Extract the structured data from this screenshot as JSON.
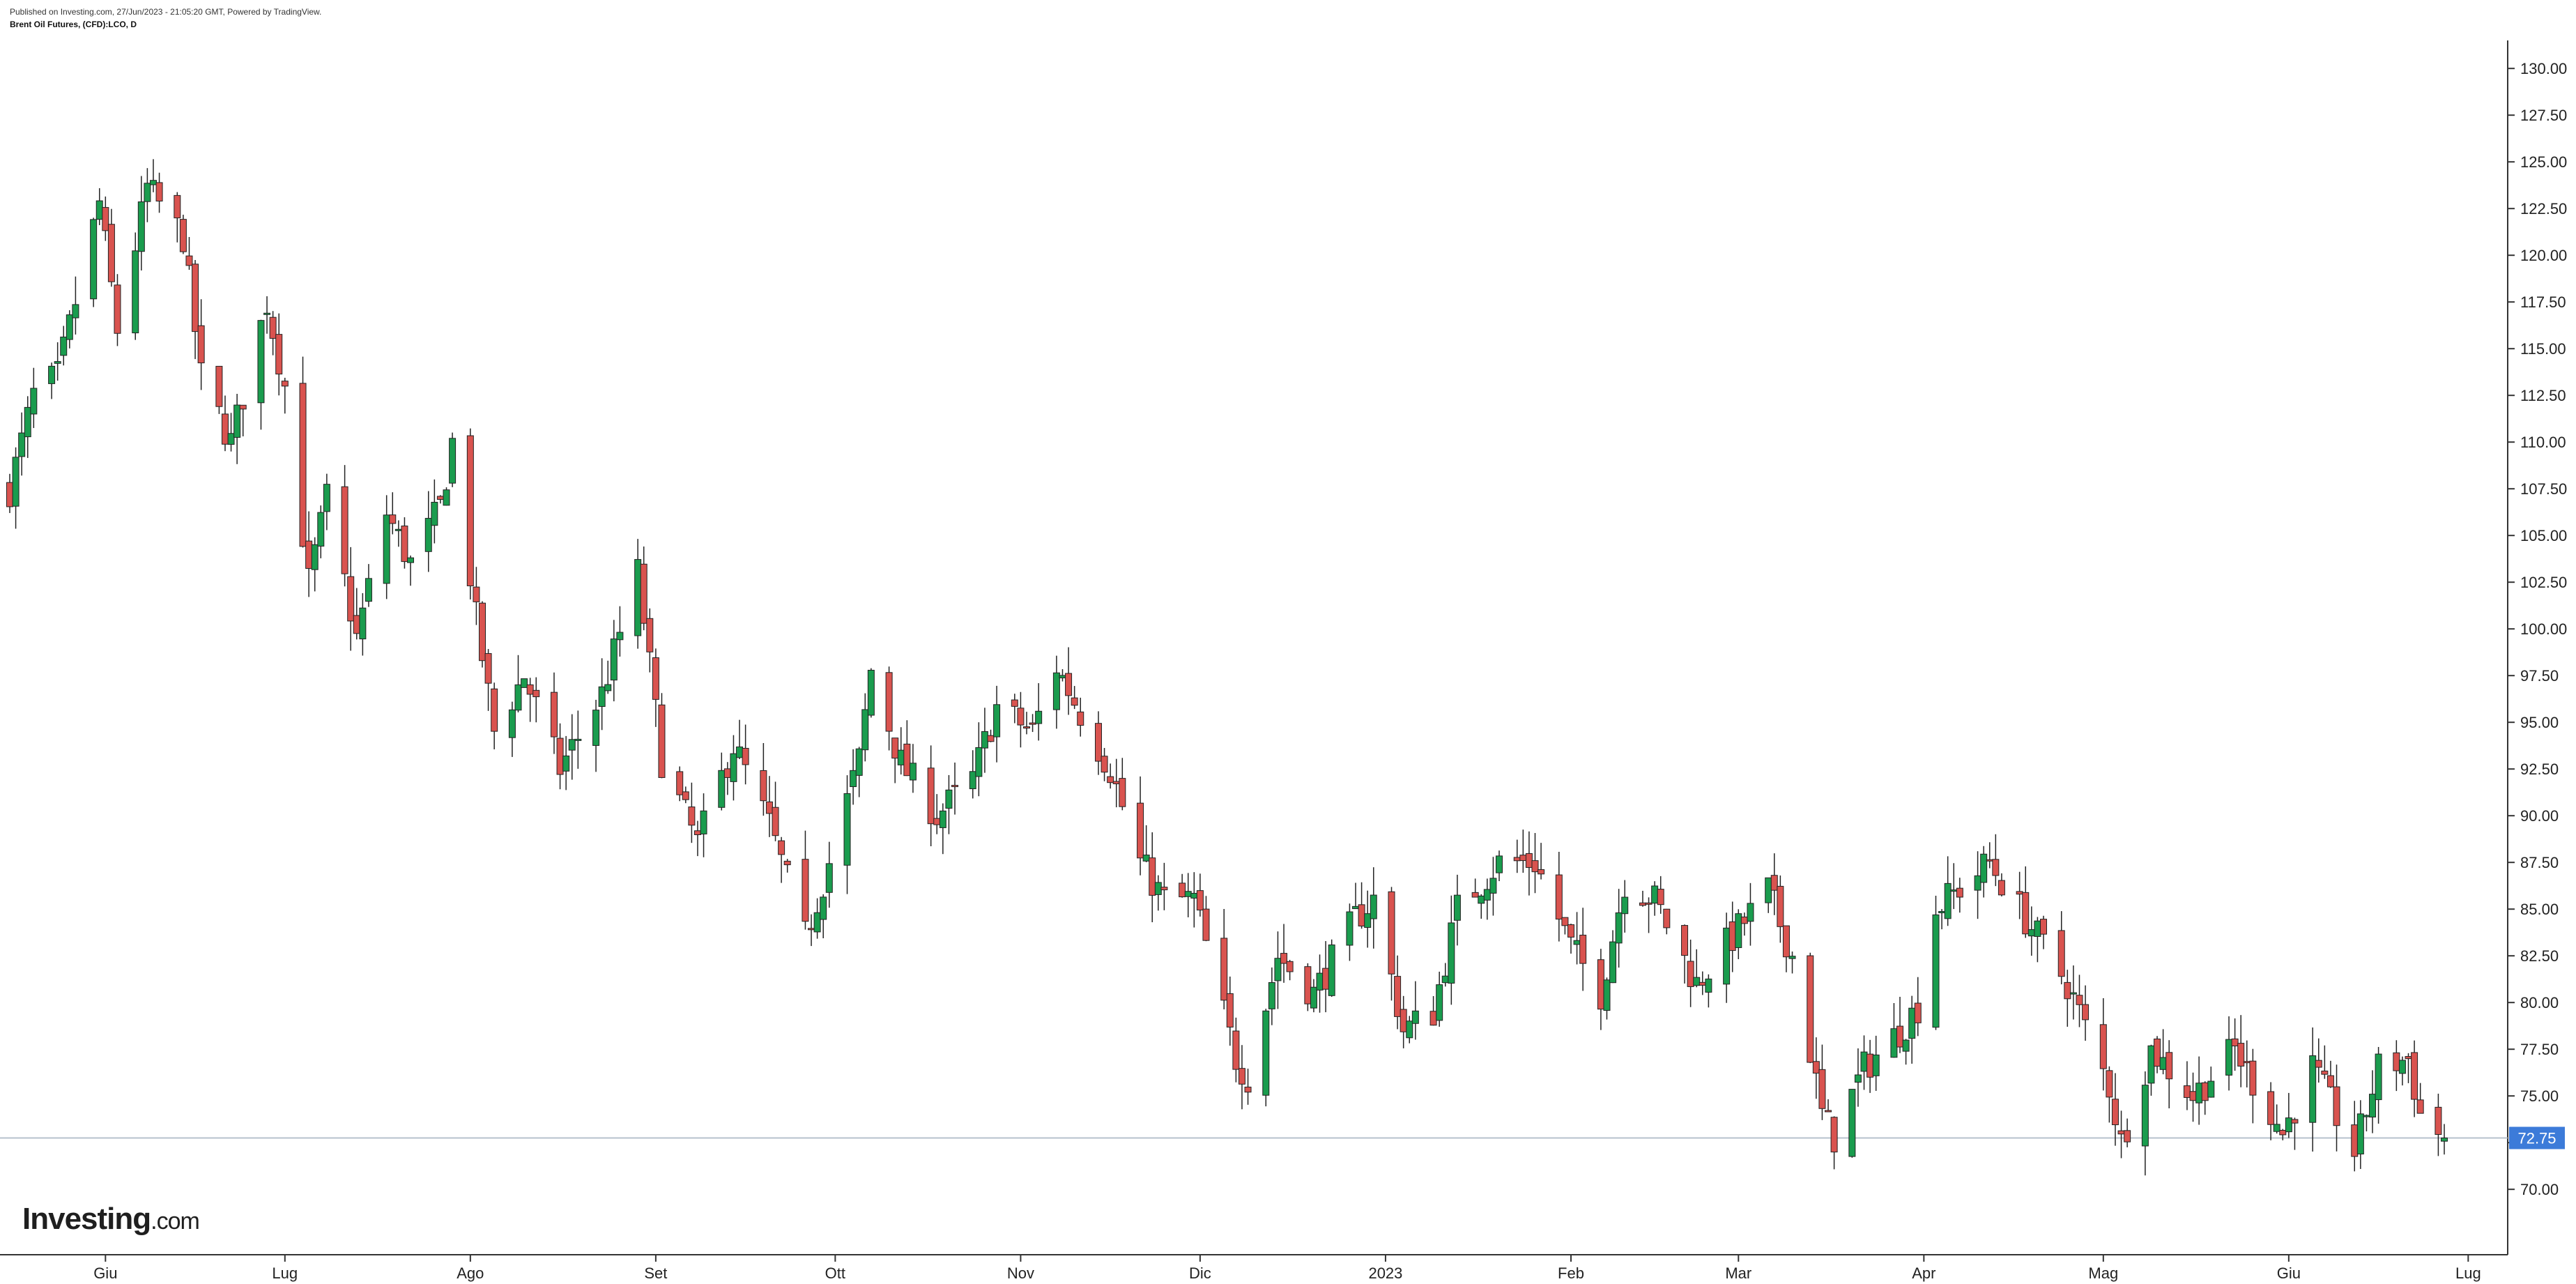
{
  "header": {
    "published": "Published on Investing.com, 27/Jun/2023 - 21:05:20 GMT, Powered by TradingView.",
    "title": "Brent Oil Futures, (CFD):LCO, D"
  },
  "logo": {
    "bold": "Investing",
    "light": ".com"
  },
  "colors": {
    "up": "#1a9c4e",
    "down": "#d9534f",
    "current": "#3c7bd9",
    "grid": "#b7c2cc"
  },
  "chart_data": {
    "type": "candlestick",
    "title": "Brent Oil Futures, (CFD):LCO, D",
    "ylim": [
      66.5,
      131.5
    ],
    "yticks": [
      70,
      72.5,
      75,
      77.5,
      80,
      82.5,
      85,
      87.5,
      90,
      92.5,
      95,
      97.5,
      100,
      102.5,
      105,
      107.5,
      110,
      112.5,
      115,
      117.5,
      120,
      122.5,
      125,
      127.5,
      130
    ],
    "ytick_labels": [
      "70.00",
      "72.50",
      "75.00",
      "77.50",
      "80.00",
      "82.50",
      "85.00",
      "87.50",
      "90.00",
      "92.50",
      "95.00",
      "97.50",
      "100.00",
      "102.50",
      "105.00",
      "107.50",
      "110.00",
      "112.50",
      "115.00",
      "117.50",
      "120.00",
      "122.50",
      "125.00",
      "127.50",
      "130.00"
    ],
    "current_price": 72.75,
    "current_label": "72.75",
    "x_labels": [
      {
        "label": "Giu",
        "date": "2022-06-01"
      },
      {
        "label": "Lug",
        "date": "2022-07-01"
      },
      {
        "label": "Ago",
        "date": "2022-08-01"
      },
      {
        "label": "Set",
        "date": "2022-09-01"
      },
      {
        "label": "Ott",
        "date": "2022-10-01"
      },
      {
        "label": "Nov",
        "date": "2022-11-01"
      },
      {
        "label": "Dic",
        "date": "2022-12-01"
      },
      {
        "label": "2023",
        "date": "2023-01-01"
      },
      {
        "label": "Feb",
        "date": "2023-02-01"
      },
      {
        "label": "Mar",
        "date": "2023-03-01"
      },
      {
        "label": "Apr",
        "date": "2023-04-01"
      },
      {
        "label": "Mag",
        "date": "2023-05-01"
      },
      {
        "label": "Giu",
        "date": "2023-06-01"
      },
      {
        "label": "Lug",
        "date": "2023-07-01"
      }
    ],
    "close_series": [
      {
        "date": "2022-05-16",
        "close": 107.5
      },
      {
        "date": "2022-05-20",
        "close": 112.5
      },
      {
        "date": "2022-05-24",
        "close": 113.5
      },
      {
        "date": "2022-05-27",
        "close": 117.5
      },
      {
        "date": "2022-05-31",
        "close": 122.8
      },
      {
        "date": "2022-06-03",
        "close": 116.0
      },
      {
        "date": "2022-06-08",
        "close": 123.6
      },
      {
        "date": "2022-06-14",
        "close": 121.0
      },
      {
        "date": "2022-06-17",
        "close": 113.5
      },
      {
        "date": "2022-06-22",
        "close": 110.0
      },
      {
        "date": "2022-06-28",
        "close": 117.5
      },
      {
        "date": "2022-07-01",
        "close": 113.0
      },
      {
        "date": "2022-07-05",
        "close": 102.5
      },
      {
        "date": "2022-07-08",
        "close": 107.0
      },
      {
        "date": "2022-07-13",
        "close": 99.5
      },
      {
        "date": "2022-07-18",
        "close": 106.2
      },
      {
        "date": "2022-07-22",
        "close": 103.5
      },
      {
        "date": "2022-07-27",
        "close": 106.5
      },
      {
        "date": "2022-07-29",
        "close": 110.0
      },
      {
        "date": "2022-08-02",
        "close": 100.5
      },
      {
        "date": "2022-08-05",
        "close": 94.5
      },
      {
        "date": "2022-08-10",
        "close": 97.5
      },
      {
        "date": "2022-08-16",
        "close": 92.5
      },
      {
        "date": "2022-08-23",
        "close": 96.5
      },
      {
        "date": "2022-08-29",
        "close": 103.0
      },
      {
        "date": "2022-09-02",
        "close": 93.0
      },
      {
        "date": "2022-09-08",
        "close": 88.5
      },
      {
        "date": "2022-09-14",
        "close": 93.8
      },
      {
        "date": "2022-09-20",
        "close": 89.5
      },
      {
        "date": "2022-09-26",
        "close": 83.5
      },
      {
        "date": "2022-09-30",
        "close": 87.5
      },
      {
        "date": "2022-10-05",
        "close": 93.0
      },
      {
        "date": "2022-10-07",
        "close": 97.8
      },
      {
        "date": "2022-10-12",
        "close": 92.8
      },
      {
        "date": "2022-10-18",
        "close": 90.0
      },
      {
        "date": "2022-10-24",
        "close": 92.0
      },
      {
        "date": "2022-10-28",
        "close": 95.8
      },
      {
        "date": "2022-11-03",
        "close": 94.5
      },
      {
        "date": "2022-11-07",
        "close": 98.0
      },
      {
        "date": "2022-11-11",
        "close": 95.5
      },
      {
        "date": "2022-11-16",
        "close": 92.5
      },
      {
        "date": "2022-11-21",
        "close": 87.5
      },
      {
        "date": "2022-11-25",
        "close": 85.5
      },
      {
        "date": "2022-11-30",
        "close": 85.5
      },
      {
        "date": "2022-12-07",
        "close": 77.0
      },
      {
        "date": "2022-12-09",
        "close": 76.0
      },
      {
        "date": "2022-12-14",
        "close": 82.5
      },
      {
        "date": "2022-12-20",
        "close": 80.5
      },
      {
        "date": "2022-12-27",
        "close": 84.5
      },
      {
        "date": "2022-12-30",
        "close": 85.5
      },
      {
        "date": "2023-01-04",
        "close": 78.5
      },
      {
        "date": "2023-01-09",
        "close": 79.5
      },
      {
        "date": "2023-01-13",
        "close": 85.0
      },
      {
        "date": "2023-01-20",
        "close": 87.5
      },
      {
        "date": "2023-01-26",
        "close": 87.5
      },
      {
        "date": "2023-02-01",
        "close": 83.0
      },
      {
        "date": "2023-02-06",
        "close": 80.5
      },
      {
        "date": "2023-02-10",
        "close": 86.5
      },
      {
        "date": "2023-02-15",
        "close": 85.5
      },
      {
        "date": "2023-02-22",
        "close": 81.0
      },
      {
        "date": "2023-02-28",
        "close": 83.5
      },
      {
        "date": "2023-03-06",
        "close": 86.0
      },
      {
        "date": "2023-03-10",
        "close": 82.5
      },
      {
        "date": "2023-03-15",
        "close": 74.0
      },
      {
        "date": "2023-03-17",
        "close": 72.8
      },
      {
        "date": "2023-03-22",
        "close": 76.5
      },
      {
        "date": "2023-03-28",
        "close": 78.5
      },
      {
        "date": "2023-03-31",
        "close": 79.8
      },
      {
        "date": "2023-04-03",
        "close": 85.0
      },
      {
        "date": "2023-04-12",
        "close": 87.5
      },
      {
        "date": "2023-04-18",
        "close": 84.5
      },
      {
        "date": "2023-04-25",
        "close": 81.0
      },
      {
        "date": "2023-05-02",
        "close": 75.5
      },
      {
        "date": "2023-05-04",
        "close": 72.5
      },
      {
        "date": "2023-05-09",
        "close": 77.5
      },
      {
        "date": "2023-05-16",
        "close": 75.0
      },
      {
        "date": "2023-05-23",
        "close": 77.5
      },
      {
        "date": "2023-05-31",
        "close": 73.0
      },
      {
        "date": "2023-06-05",
        "close": 76.5
      },
      {
        "date": "2023-06-12",
        "close": 72.0
      },
      {
        "date": "2023-06-16",
        "close": 76.5
      },
      {
        "date": "2023-06-21",
        "close": 77.0
      },
      {
        "date": "2023-06-23",
        "close": 74.0
      },
      {
        "date": "2023-06-27",
        "close": 72.75
      }
    ],
    "grid": false
  }
}
